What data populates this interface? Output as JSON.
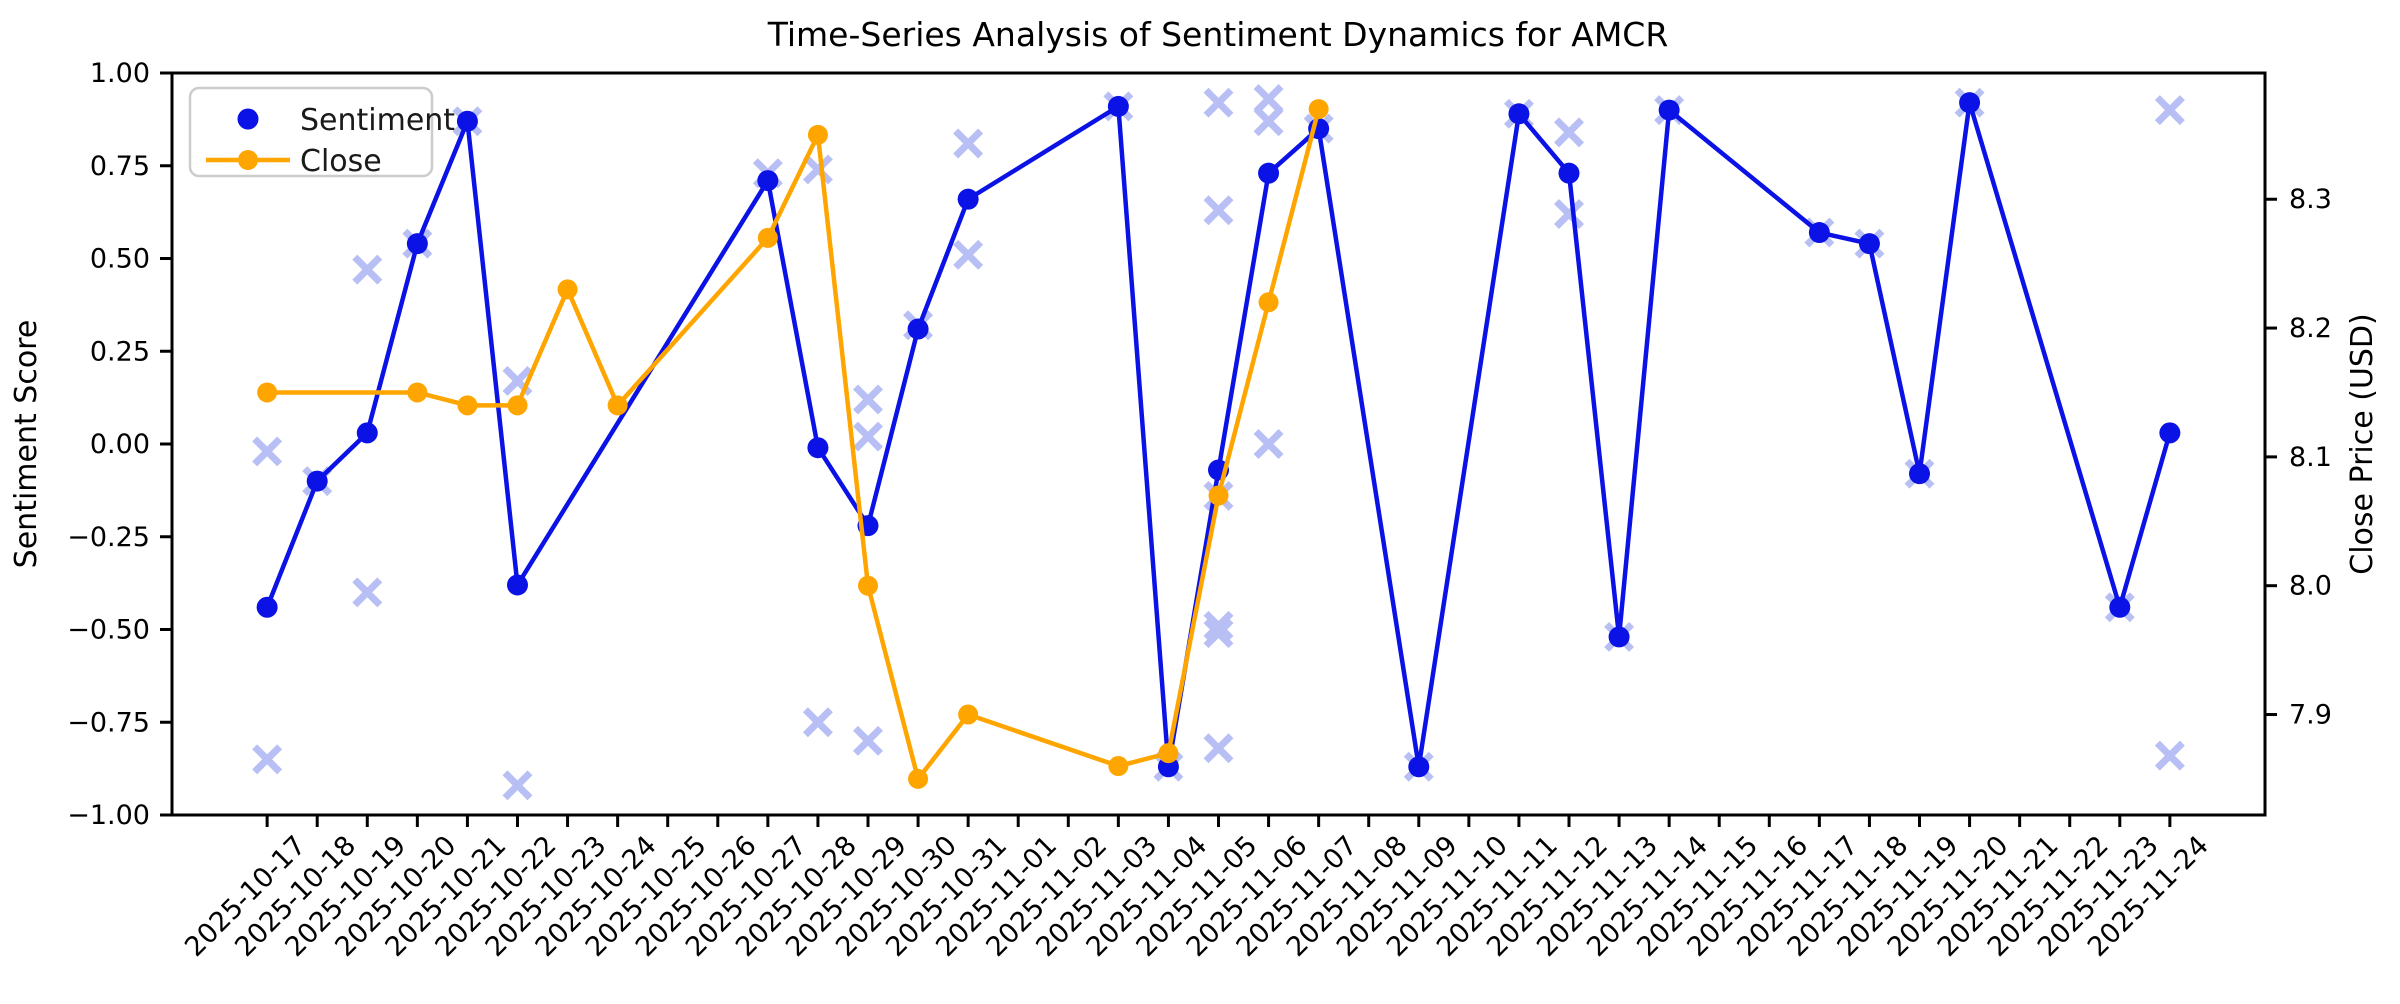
{
  "page": {
    "background": "#ffffff"
  },
  "chart_data": {
    "type": "line",
    "title": "Time-Series Analysis of Sentiment Dynamics for AMCR",
    "ylabel_left": "Sentiment Score",
    "ylabel_right": "Close Price (USD)",
    "grid": false,
    "colors": {
      "sentiment": "#0b12e6",
      "close": "#ffa500",
      "scatter": "#2a3fe0",
      "axis": "#000000",
      "legend_border": "#cccccc"
    },
    "x_tick_labels": [
      "2025-10-17",
      "2025-10-18",
      "2025-10-19",
      "2025-10-20",
      "2025-10-21",
      "2025-10-22",
      "2025-10-23",
      "2025-10-24",
      "2025-10-25",
      "2025-10-26",
      "2025-10-27",
      "2025-10-28",
      "2025-10-29",
      "2025-10-30",
      "2025-10-31",
      "2025-11-01",
      "2025-11-02",
      "2025-11-03",
      "2025-11-04",
      "2025-11-05",
      "2025-11-06",
      "2025-11-07",
      "2025-11-08",
      "2025-11-09",
      "2025-11-10",
      "2025-11-11",
      "2025-11-12",
      "2025-11-13",
      "2025-11-14",
      "2025-11-15",
      "2025-11-16",
      "2025-11-17",
      "2025-11-18",
      "2025-11-19",
      "2025-11-20",
      "2025-11-21",
      "2025-11-22",
      "2025-11-23",
      "2025-11-24"
    ],
    "x_range_index": [
      -1.9,
      39.9
    ],
    "left_axis": {
      "lim": [
        -1.0,
        1.0
      ],
      "tick_values": [
        1.0,
        0.75,
        0.5,
        0.25,
        0.0,
        -0.25,
        -0.5,
        -0.75,
        -1.0
      ],
      "tick_labels": [
        "1.00",
        "0.75",
        "0.50",
        "0.25",
        "0.00",
        "−0.25",
        "−0.50",
        "−0.75",
        "−1.00"
      ]
    },
    "right_axis": {
      "lim": [
        7.822,
        8.398
      ],
      "tick_values": [
        8.3,
        8.2,
        8.1,
        8.0,
        7.9
      ],
      "tick_labels": [
        "8.3",
        "8.2",
        "8.1",
        "8.0",
        "7.9"
      ]
    },
    "series": [
      {
        "name": "Sentiment",
        "kind": "line_with_dots",
        "axis": "left",
        "points": [
          [
            "2025-10-17",
            -0.44
          ],
          [
            "2025-10-18",
            -0.1
          ],
          [
            "2025-10-19",
            0.03
          ],
          [
            "2025-10-20",
            0.54
          ],
          [
            "2025-10-21",
            0.87
          ],
          [
            "2025-10-22",
            -0.38
          ],
          [
            "2025-10-27",
            0.71
          ],
          [
            "2025-10-28",
            -0.01
          ],
          [
            "2025-10-29",
            -0.22
          ],
          [
            "2025-10-30",
            0.31
          ],
          [
            "2025-10-31",
            0.66
          ],
          [
            "2025-11-03",
            0.91
          ],
          [
            "2025-11-04",
            -0.87
          ],
          [
            "2025-11-05",
            -0.07
          ],
          [
            "2025-11-06",
            0.73
          ],
          [
            "2025-11-07",
            0.85
          ],
          [
            "2025-11-09",
            -0.87
          ],
          [
            "2025-11-11",
            0.89
          ],
          [
            "2025-11-12",
            0.73
          ],
          [
            "2025-11-13",
            -0.52
          ],
          [
            "2025-11-14",
            0.9
          ],
          [
            "2025-11-17",
            0.57
          ],
          [
            "2025-11-18",
            0.54
          ],
          [
            "2025-11-19",
            -0.08
          ],
          [
            "2025-11-20",
            0.92
          ],
          [
            "2025-11-23",
            -0.44
          ],
          [
            "2025-11-24",
            0.03
          ]
        ]
      },
      {
        "name": "Close",
        "kind": "line_with_dots",
        "axis": "right",
        "points": [
          [
            "2025-10-17",
            8.15
          ],
          [
            "2025-10-20",
            8.15
          ],
          [
            "2025-10-21",
            8.14
          ],
          [
            "2025-10-22",
            8.14
          ],
          [
            "2025-10-23",
            8.23
          ],
          [
            "2025-10-24",
            8.14
          ],
          [
            "2025-10-27",
            8.27
          ],
          [
            "2025-10-28",
            8.35
          ],
          [
            "2025-10-29",
            8.0
          ],
          [
            "2025-10-30",
            7.85
          ],
          [
            "2025-10-31",
            7.9
          ],
          [
            "2025-11-03",
            7.86
          ],
          [
            "2025-11-04",
            7.87
          ],
          [
            "2025-11-05",
            8.07
          ],
          [
            "2025-11-06",
            8.22
          ],
          [
            "2025-11-07",
            8.37
          ]
        ]
      },
      {
        "name": "Sentiment readings",
        "kind": "x_scatter",
        "axis": "left",
        "opacity": 0.33,
        "points": [
          [
            "2025-10-17",
            -0.02
          ],
          [
            "2025-10-17",
            -0.85
          ],
          [
            "2025-10-18",
            -0.1
          ],
          [
            "2025-10-19",
            0.47
          ],
          [
            "2025-10-19",
            -0.4
          ],
          [
            "2025-10-20",
            0.54
          ],
          [
            "2025-10-21",
            0.87
          ],
          [
            "2025-10-22",
            0.17
          ],
          [
            "2025-10-22",
            -0.92
          ],
          [
            "2025-10-27",
            0.73
          ],
          [
            "2025-10-28",
            0.74
          ],
          [
            "2025-10-28",
            -0.75
          ],
          [
            "2025-10-29",
            0.12
          ],
          [
            "2025-10-29",
            0.02
          ],
          [
            "2025-10-29",
            -0.8
          ],
          [
            "2025-10-30",
            0.32
          ],
          [
            "2025-10-31",
            0.81
          ],
          [
            "2025-10-31",
            0.51
          ],
          [
            "2025-11-03",
            0.91
          ],
          [
            "2025-11-04",
            -0.87
          ],
          [
            "2025-11-05",
            0.92
          ],
          [
            "2025-11-05",
            0.63
          ],
          [
            "2025-11-05",
            -0.49
          ],
          [
            "2025-11-05",
            -0.51
          ],
          [
            "2025-11-05",
            -0.82
          ],
          [
            "2025-11-05",
            -0.14
          ],
          [
            "2025-11-06",
            0.93
          ],
          [
            "2025-11-06",
            0.87
          ],
          [
            "2025-11-06",
            0.0
          ],
          [
            "2025-11-07",
            0.85
          ],
          [
            "2025-11-09",
            -0.87
          ],
          [
            "2025-11-11",
            0.89
          ],
          [
            "2025-11-12",
            0.84
          ],
          [
            "2025-11-12",
            0.62
          ],
          [
            "2025-11-13",
            -0.52
          ],
          [
            "2025-11-14",
            0.9
          ],
          [
            "2025-11-17",
            0.57
          ],
          [
            "2025-11-18",
            0.54
          ],
          [
            "2025-11-19",
            -0.08
          ],
          [
            "2025-11-20",
            0.92
          ],
          [
            "2025-11-23",
            -0.44
          ],
          [
            "2025-11-24",
            0.9
          ],
          [
            "2025-11-24",
            -0.84
          ]
        ]
      }
    ],
    "legend": {
      "position": "upper-left",
      "entries": [
        {
          "label": "Sentiment",
          "marker": "dot"
        },
        {
          "label": "Close",
          "marker": "line-dot"
        }
      ]
    }
  }
}
